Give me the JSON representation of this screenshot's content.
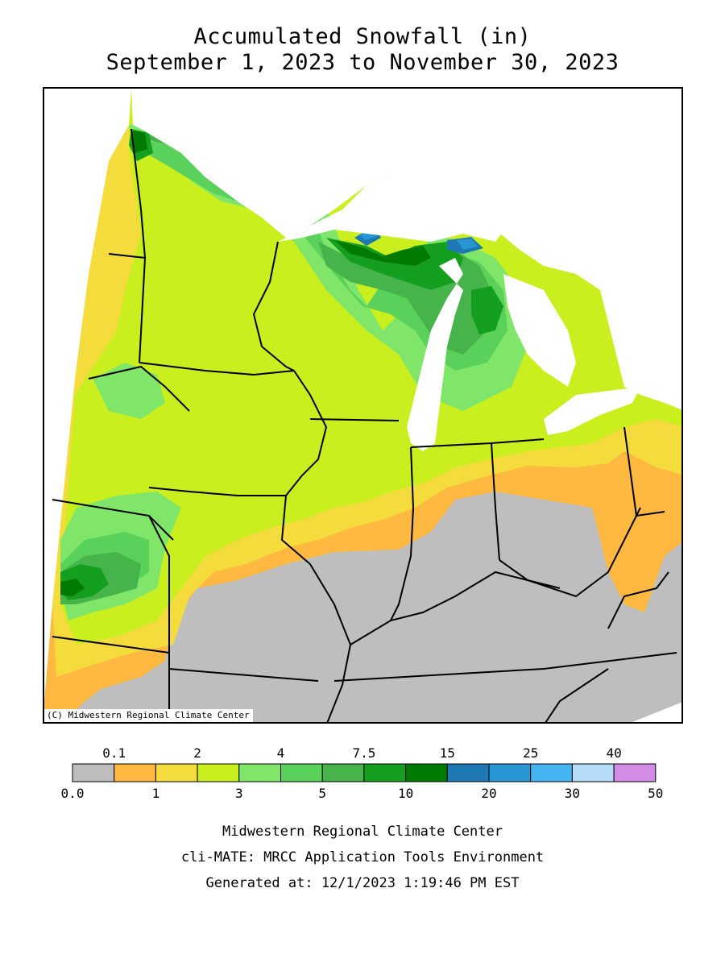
{
  "title": {
    "line1": "Accumulated Snowfall (in)",
    "line2": "September 1, 2023 to November 30, 2023"
  },
  "map": {
    "copyright": "(C) Midwestern Regional Climate Center",
    "colors": {
      "none": "#bebebe",
      "c0_1": "#ffb840",
      "c1_2": "#f3dc3c",
      "c2_3": "#c9ef1e",
      "c3_4": "#7fe66a",
      "c4_5": "#5ad15a",
      "c5_7_5": "#46b34b",
      "c7_5_10": "#14a01e",
      "c10_15": "#007a00",
      "c15_20": "#1e78b4",
      "c20_25": "#2896d2",
      "c25_30": "#46b4f0",
      "water": "#ffffff",
      "borders": "#000000"
    }
  },
  "legend": {
    "bins": [
      {
        "color": "#bebebe"
      },
      {
        "color": "#ffb840"
      },
      {
        "color": "#f3dc3c"
      },
      {
        "color": "#c9ef1e"
      },
      {
        "color": "#7fe66a"
      },
      {
        "color": "#5ad15a"
      },
      {
        "color": "#46b34b"
      },
      {
        "color": "#14a01e"
      },
      {
        "color": "#007a00"
      },
      {
        "color": "#1e78b4"
      },
      {
        "color": "#2896d2"
      },
      {
        "color": "#46b4f0"
      },
      {
        "color": "#b4dcf8"
      },
      {
        "color": "#d28ce6"
      }
    ],
    "top_labels": [
      {
        "text": "0.1",
        "at": 1
      },
      {
        "text": "2",
        "at": 3
      },
      {
        "text": "4",
        "at": 5
      },
      {
        "text": "7.5",
        "at": 7
      },
      {
        "text": "15",
        "at": 9
      },
      {
        "text": "25",
        "at": 11
      },
      {
        "text": "40",
        "at": 13
      }
    ],
    "bottom_labels": [
      {
        "text": "0.0",
        "at": 0
      },
      {
        "text": "1",
        "at": 2
      },
      {
        "text": "3",
        "at": 4
      },
      {
        "text": "5",
        "at": 6
      },
      {
        "text": "10",
        "at": 8
      },
      {
        "text": "20",
        "at": 10
      },
      {
        "text": "30",
        "at": 12
      },
      {
        "text": "50",
        "at": 14
      }
    ]
  },
  "footer": {
    "line1": "Midwestern Regional Climate Center",
    "line2": "cli-MATE: MRCC Application Tools Environment",
    "line3": "Generated at: 12/1/2023 1:19:46 PM EST"
  }
}
